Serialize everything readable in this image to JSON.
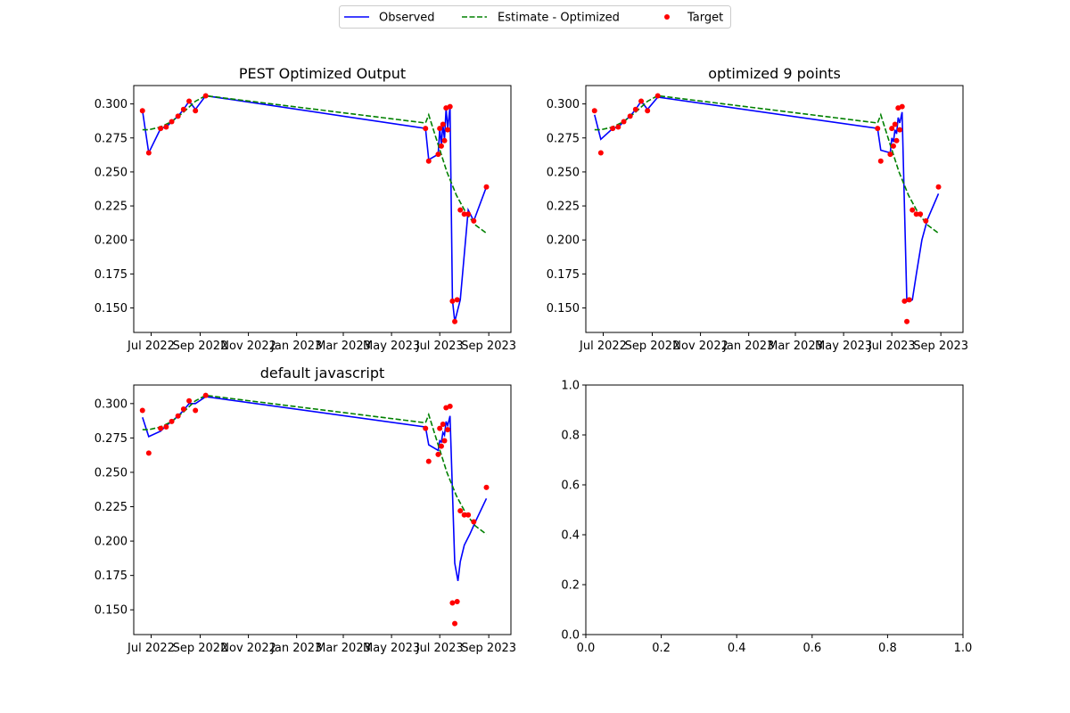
{
  "legend": {
    "placement": "top-center",
    "entries": [
      {
        "label": "Observed",
        "style": "solid",
        "color": "#0000ff"
      },
      {
        "label": "Estimate - Optimized",
        "style": "dashed",
        "color": "#008000"
      },
      {
        "label": "Target",
        "style": "dot",
        "color": "#ff0000"
      }
    ]
  },
  "chart_data": [
    {
      "type": "line",
      "title": "PEST Optimized Output",
      "x_type": "date",
      "xlim": [
        "2022-06-09",
        "2023-09-29"
      ],
      "ylim": [
        0.132,
        0.3135
      ],
      "x_ticks": [
        {
          "date": "2022-07-01",
          "label": "Jul 2022"
        },
        {
          "date": "2022-09-01",
          "label": "Sep 2022"
        },
        {
          "date": "2022-11-01",
          "label": "Nov 2022"
        },
        {
          "date": "2023-01-01",
          "label": "Jan 2023"
        },
        {
          "date": "2023-03-01",
          "label": "Mar 2023"
        },
        {
          "date": "2023-05-01",
          "label": "May 2023"
        },
        {
          "date": "2023-07-01",
          "label": "Jul 2023"
        },
        {
          "date": "2023-09-01",
          "label": "Sep 2023"
        }
      ],
      "y_ticks": [
        "0.150",
        "0.175",
        "0.200",
        "0.225",
        "0.250",
        "0.275",
        "0.300"
      ],
      "y_tick_values": [
        0.15,
        0.175,
        0.2,
        0.225,
        0.25,
        0.275,
        0.3
      ],
      "series": [
        {
          "name": "Observed",
          "kind": "line",
          "color": "#0000ff",
          "x": [
            "2022-06-20",
            "2022-06-28",
            "2022-07-13",
            "2022-07-20",
            "2022-07-27",
            "2022-08-04",
            "2022-08-11",
            "2022-08-18",
            "2022-08-26",
            "2022-09-08",
            "2023-06-13",
            "2023-06-17",
            "2023-06-29",
            "2023-07-01",
            "2023-07-03",
            "2023-07-05",
            "2023-07-07",
            "2023-07-09",
            "2023-07-11",
            "2023-07-14",
            "2023-07-17",
            "2023-07-20",
            "2023-07-27",
            "2023-08-06",
            "2023-08-13",
            "2023-08-29"
          ],
          "y": [
            0.295,
            0.264,
            0.282,
            0.283,
            0.287,
            0.291,
            0.296,
            0.302,
            0.296,
            0.306,
            0.282,
            0.259,
            0.263,
            0.282,
            0.27,
            0.285,
            0.274,
            0.297,
            0.282,
            0.298,
            0.156,
            0.14,
            0.156,
            0.222,
            0.214,
            0.239
          ]
        },
        {
          "name": "Estimate - Optimized",
          "kind": "dashed",
          "color": "#008000",
          "x": [
            "2022-06-20",
            "2022-06-28",
            "2022-07-13",
            "2022-07-27",
            "2022-08-11",
            "2022-08-26",
            "2022-09-08",
            "2023-06-13",
            "2023-06-17",
            "2023-06-29",
            "2023-07-10",
            "2023-07-22",
            "2023-08-03",
            "2023-08-15",
            "2023-08-29"
          ],
          "y": [
            0.281,
            0.281,
            0.283,
            0.287,
            0.294,
            0.302,
            0.306,
            0.286,
            0.292,
            0.27,
            0.25,
            0.233,
            0.22,
            0.211,
            0.205
          ]
        },
        {
          "name": "Target",
          "kind": "scatter",
          "color": "#ff0000",
          "x": [
            "2022-06-20",
            "2022-06-28",
            "2022-07-13",
            "2022-07-20",
            "2022-07-27",
            "2022-08-04",
            "2022-08-11",
            "2022-08-18",
            "2022-08-26",
            "2022-09-08",
            "2023-06-13",
            "2023-06-17",
            "2023-06-29",
            "2023-07-01",
            "2023-07-03",
            "2023-07-05",
            "2023-07-07",
            "2023-07-09",
            "2023-07-11",
            "2023-07-14",
            "2023-07-17",
            "2023-07-20",
            "2023-07-23",
            "2023-07-27",
            "2023-08-01",
            "2023-08-06",
            "2023-08-13",
            "2023-08-29"
          ],
          "y": [
            0.295,
            0.264,
            0.282,
            0.283,
            0.287,
            0.291,
            0.296,
            0.302,
            0.295,
            0.306,
            0.282,
            0.258,
            0.263,
            0.282,
            0.269,
            0.285,
            0.273,
            0.297,
            0.281,
            0.298,
            0.155,
            0.14,
            0.156,
            0.222,
            0.219,
            0.219,
            0.214,
            0.239
          ]
        }
      ]
    },
    {
      "type": "line",
      "title": "optimized 9 points",
      "x_type": "date",
      "xlim": [
        "2022-06-09",
        "2023-09-29"
      ],
      "ylim": [
        0.132,
        0.3135
      ],
      "x_ticks": [
        {
          "date": "2022-07-01",
          "label": "Jul 2022"
        },
        {
          "date": "2022-09-01",
          "label": "Sep 2022"
        },
        {
          "date": "2022-11-01",
          "label": "Nov 2022"
        },
        {
          "date": "2023-01-01",
          "label": "Jan 2023"
        },
        {
          "date": "2023-03-01",
          "label": "Mar 2023"
        },
        {
          "date": "2023-05-01",
          "label": "May 2023"
        },
        {
          "date": "2023-07-01",
          "label": "Jul 2023"
        },
        {
          "date": "2023-09-01",
          "label": "Sep 2023"
        }
      ],
      "y_ticks": [
        "0.150",
        "0.175",
        "0.200",
        "0.225",
        "0.250",
        "0.275",
        "0.300"
      ],
      "y_tick_values": [
        0.15,
        0.175,
        0.2,
        0.225,
        0.25,
        0.275,
        0.3
      ],
      "series": [
        {
          "name": "Observed",
          "kind": "line",
          "color": "#0000ff",
          "x": [
            "2022-06-20",
            "2022-06-28",
            "2022-07-13",
            "2022-07-20",
            "2022-07-27",
            "2022-08-04",
            "2022-08-11",
            "2022-08-18",
            "2022-08-26",
            "2022-09-08",
            "2023-06-13",
            "2023-06-17",
            "2023-06-29",
            "2023-07-01",
            "2023-07-03",
            "2023-07-05",
            "2023-07-07",
            "2023-07-09",
            "2023-07-11",
            "2023-07-14",
            "2023-07-20",
            "2023-07-24",
            "2023-07-27",
            "2023-08-01",
            "2023-08-08",
            "2023-08-15",
            "2023-08-29"
          ],
          "y": [
            0.292,
            0.274,
            0.282,
            0.283,
            0.287,
            0.291,
            0.296,
            0.302,
            0.296,
            0.305,
            0.282,
            0.266,
            0.264,
            0.275,
            0.272,
            0.281,
            0.278,
            0.29,
            0.286,
            0.294,
            0.155,
            0.155,
            0.156,
            0.175,
            0.2,
            0.215,
            0.234
          ]
        },
        {
          "name": "Estimate - Optimized",
          "kind": "dashed",
          "color": "#008000",
          "x": [
            "2022-06-20",
            "2022-06-28",
            "2022-07-13",
            "2022-07-27",
            "2022-08-11",
            "2022-08-26",
            "2022-09-08",
            "2023-06-13",
            "2023-06-17",
            "2023-06-29",
            "2023-07-10",
            "2023-07-22",
            "2023-08-03",
            "2023-08-15",
            "2023-08-29"
          ],
          "y": [
            0.281,
            0.281,
            0.283,
            0.287,
            0.294,
            0.302,
            0.306,
            0.286,
            0.292,
            0.27,
            0.25,
            0.233,
            0.22,
            0.211,
            0.205
          ]
        },
        {
          "name": "Target",
          "kind": "scatter",
          "color": "#ff0000",
          "x": [
            "2022-06-20",
            "2022-06-28",
            "2022-07-13",
            "2022-07-20",
            "2022-07-27",
            "2022-08-04",
            "2022-08-11",
            "2022-08-18",
            "2022-08-26",
            "2022-09-08",
            "2023-06-13",
            "2023-06-17",
            "2023-06-29",
            "2023-07-01",
            "2023-07-03",
            "2023-07-05",
            "2023-07-07",
            "2023-07-09",
            "2023-07-11",
            "2023-07-14",
            "2023-07-17",
            "2023-07-20",
            "2023-07-23",
            "2023-07-27",
            "2023-08-01",
            "2023-08-06",
            "2023-08-13",
            "2023-08-29"
          ],
          "y": [
            0.295,
            0.264,
            0.282,
            0.283,
            0.287,
            0.291,
            0.296,
            0.302,
            0.295,
            0.306,
            0.282,
            0.258,
            0.263,
            0.282,
            0.269,
            0.285,
            0.273,
            0.297,
            0.281,
            0.298,
            0.155,
            0.14,
            0.156,
            0.222,
            0.219,
            0.219,
            0.214,
            0.239
          ]
        }
      ]
    },
    {
      "type": "line",
      "title": "default javascript",
      "x_type": "date",
      "xlim": [
        "2022-06-09",
        "2023-09-29"
      ],
      "ylim": [
        0.132,
        0.3135
      ],
      "x_ticks": [
        {
          "date": "2022-07-01",
          "label": "Jul 2022"
        },
        {
          "date": "2022-09-01",
          "label": "Sep 2022"
        },
        {
          "date": "2022-11-01",
          "label": "Nov 2022"
        },
        {
          "date": "2023-01-01",
          "label": "Jan 2023"
        },
        {
          "date": "2023-03-01",
          "label": "Mar 2023"
        },
        {
          "date": "2023-05-01",
          "label": "May 2023"
        },
        {
          "date": "2023-07-01",
          "label": "Jul 2023"
        },
        {
          "date": "2023-09-01",
          "label": "Sep 2023"
        }
      ],
      "y_ticks": [
        "0.150",
        "0.175",
        "0.200",
        "0.225",
        "0.250",
        "0.275",
        "0.300"
      ],
      "y_tick_values": [
        0.15,
        0.175,
        0.2,
        0.225,
        0.25,
        0.275,
        0.3
      ],
      "series": [
        {
          "name": "Observed",
          "kind": "line",
          "color": "#0000ff",
          "x": [
            "2022-06-20",
            "2022-06-28",
            "2022-07-13",
            "2022-07-20",
            "2022-07-27",
            "2022-08-04",
            "2022-08-11",
            "2022-08-18",
            "2022-08-26",
            "2022-09-08",
            "2023-06-13",
            "2023-06-17",
            "2023-06-29",
            "2023-07-01",
            "2023-07-03",
            "2023-07-05",
            "2023-07-07",
            "2023-07-09",
            "2023-07-11",
            "2023-07-14",
            "2023-07-20",
            "2023-07-24",
            "2023-07-27",
            "2023-08-01",
            "2023-08-08",
            "2023-08-15",
            "2023-08-29"
          ],
          "y": [
            0.29,
            0.276,
            0.28,
            0.284,
            0.287,
            0.291,
            0.295,
            0.3,
            0.3,
            0.305,
            0.283,
            0.27,
            0.266,
            0.273,
            0.272,
            0.279,
            0.277,
            0.287,
            0.284,
            0.291,
            0.184,
            0.171,
            0.185,
            0.197,
            0.205,
            0.214,
            0.231
          ]
        },
        {
          "name": "Estimate - Optimized",
          "kind": "dashed",
          "color": "#008000",
          "x": [
            "2022-06-20",
            "2022-06-28",
            "2022-07-13",
            "2022-07-27",
            "2022-08-11",
            "2022-08-26",
            "2022-09-08",
            "2023-06-13",
            "2023-06-17",
            "2023-06-29",
            "2023-07-10",
            "2023-07-22",
            "2023-08-03",
            "2023-08-15",
            "2023-08-29"
          ],
          "y": [
            0.281,
            0.281,
            0.283,
            0.287,
            0.294,
            0.302,
            0.306,
            0.286,
            0.292,
            0.27,
            0.25,
            0.233,
            0.22,
            0.211,
            0.205
          ]
        },
        {
          "name": "Target",
          "kind": "scatter",
          "color": "#ff0000",
          "x": [
            "2022-06-20",
            "2022-06-28",
            "2022-07-13",
            "2022-07-20",
            "2022-07-27",
            "2022-08-04",
            "2022-08-11",
            "2022-08-18",
            "2022-08-26",
            "2022-09-08",
            "2023-06-13",
            "2023-06-17",
            "2023-06-29",
            "2023-07-01",
            "2023-07-03",
            "2023-07-05",
            "2023-07-07",
            "2023-07-09",
            "2023-07-11",
            "2023-07-14",
            "2023-07-17",
            "2023-07-20",
            "2023-07-23",
            "2023-07-27",
            "2023-08-01",
            "2023-08-06",
            "2023-08-13",
            "2023-08-29"
          ],
          "y": [
            0.295,
            0.264,
            0.282,
            0.283,
            0.287,
            0.291,
            0.296,
            0.302,
            0.295,
            0.306,
            0.282,
            0.258,
            0.263,
            0.282,
            0.269,
            0.285,
            0.273,
            0.297,
            0.281,
            0.298,
            0.155,
            0.14,
            0.156,
            0.222,
            0.219,
            0.219,
            0.214,
            0.239
          ]
        }
      ]
    },
    {
      "type": "line",
      "title": "",
      "x_type": "number",
      "xlim": [
        0,
        1
      ],
      "ylim": [
        0,
        1
      ],
      "x_ticks": [
        {
          "value": 0.0,
          "label": "0.0"
        },
        {
          "value": 0.2,
          "label": "0.2"
        },
        {
          "value": 0.4,
          "label": "0.4"
        },
        {
          "value": 0.6,
          "label": "0.6"
        },
        {
          "value": 0.8,
          "label": "0.8"
        },
        {
          "value": 1.0,
          "label": "1.0"
        }
      ],
      "y_ticks": [
        "0.0",
        "0.2",
        "0.4",
        "0.6",
        "0.8",
        "1.0"
      ],
      "y_tick_values": [
        0.0,
        0.2,
        0.4,
        0.6,
        0.8,
        1.0
      ],
      "series": []
    }
  ]
}
